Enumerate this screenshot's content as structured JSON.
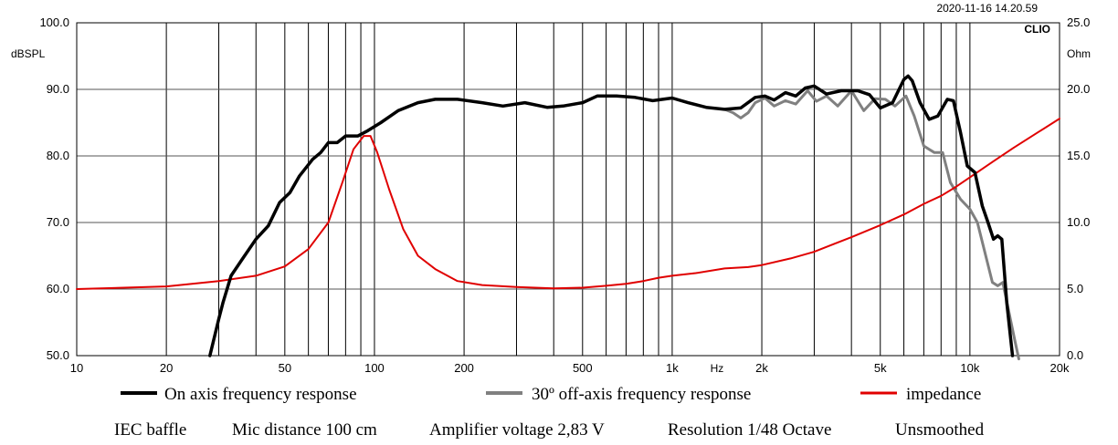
{
  "chart_data": {
    "type": "line",
    "timestamp": "2020-11-16 14.20.59",
    "brand": "CLIO",
    "left_axis": {
      "unit": "dBSPL",
      "range": [
        50,
        100
      ],
      "ticks": [
        50,
        60,
        70,
        80,
        90,
        100
      ],
      "tick_labels": [
        "50.0",
        "60.0",
        "70.0",
        "80.0",
        "90.0",
        "100.0"
      ]
    },
    "right_axis": {
      "unit": "Ohm",
      "range": [
        0,
        25
      ],
      "ticks": [
        0,
        5,
        10,
        15,
        20,
        25
      ],
      "tick_labels": [
        "0.0",
        "5.0",
        "10.0",
        "15.0",
        "20.0",
        "25.0"
      ]
    },
    "x_axis": {
      "scale": "log",
      "unit": "Hz",
      "range": [
        10,
        20000
      ],
      "labeled_ticks": [
        {
          "value": 10,
          "label": "10"
        },
        {
          "value": 20,
          "label": "20"
        },
        {
          "value": 50,
          "label": "50"
        },
        {
          "value": 100,
          "label": "100"
        },
        {
          "value": 200,
          "label": "200"
        },
        {
          "value": 500,
          "label": "500"
        },
        {
          "value": 1000,
          "label": "1k"
        },
        {
          "value": 2000,
          "label": "2k"
        },
        {
          "value": 5000,
          "label": "5k"
        },
        {
          "value": 10000,
          "label": "10k"
        },
        {
          "value": 20000,
          "label": "20k"
        }
      ],
      "gridlines": [
        20,
        30,
        40,
        50,
        60,
        70,
        80,
        90,
        100,
        200,
        300,
        400,
        500,
        600,
        700,
        800,
        900,
        1000,
        2000,
        3000,
        4000,
        5000,
        6000,
        7000,
        8000,
        9000,
        10000
      ],
      "unit_label_at": 1414
    },
    "series": [
      {
        "name": "On axis frequency response",
        "axis": "left",
        "color": "#000000",
        "points": [
          [
            28,
            50
          ],
          [
            30,
            55.5
          ],
          [
            31,
            58
          ],
          [
            33,
            62
          ],
          [
            36,
            64.5
          ],
          [
            40,
            67.5
          ],
          [
            44,
            69.5
          ],
          [
            48,
            73
          ],
          [
            52,
            74.5
          ],
          [
            56,
            77
          ],
          [
            62,
            79.5
          ],
          [
            66,
            80.5
          ],
          [
            70,
            82
          ],
          [
            75,
            82
          ],
          [
            80,
            83
          ],
          [
            88,
            83
          ],
          [
            95,
            83.8
          ],
          [
            105,
            85
          ],
          [
            120,
            86.8
          ],
          [
            140,
            88
          ],
          [
            160,
            88.5
          ],
          [
            190,
            88.5
          ],
          [
            230,
            88
          ],
          [
            270,
            87.5
          ],
          [
            320,
            88
          ],
          [
            380,
            87.3
          ],
          [
            430,
            87.5
          ],
          [
            500,
            88
          ],
          [
            560,
            89
          ],
          [
            650,
            89
          ],
          [
            750,
            88.8
          ],
          [
            860,
            88.3
          ],
          [
            1000,
            88.7
          ],
          [
            1130,
            88
          ],
          [
            1300,
            87.3
          ],
          [
            1500,
            87
          ],
          [
            1700,
            87.2
          ],
          [
            1900,
            88.8
          ],
          [
            2050,
            89
          ],
          [
            2200,
            88.4
          ],
          [
            2400,
            89.5
          ],
          [
            2600,
            89
          ],
          [
            2800,
            90.2
          ],
          [
            3000,
            90.5
          ],
          [
            3300,
            89.3
          ],
          [
            3700,
            89.8
          ],
          [
            4200,
            89.8
          ],
          [
            4600,
            89.2
          ],
          [
            5000,
            87.2
          ],
          [
            5500,
            88
          ],
          [
            6000,
            91.5
          ],
          [
            6200,
            92
          ],
          [
            6400,
            91.3
          ],
          [
            6800,
            88
          ],
          [
            7300,
            85.5
          ],
          [
            7800,
            86
          ],
          [
            8400,
            88.5
          ],
          [
            8800,
            88.3
          ],
          [
            9300,
            83.5
          ],
          [
            9800,
            78.5
          ],
          [
            10400,
            77.5
          ],
          [
            11000,
            72.5
          ],
          [
            11500,
            70
          ],
          [
            12000,
            67.5
          ],
          [
            12400,
            68
          ],
          [
            12800,
            67.5
          ],
          [
            13300,
            58
          ],
          [
            13900,
            50
          ]
        ]
      },
      {
        "name": "30º off-axis frequency response",
        "axis": "left",
        "color": "#808080",
        "points": [
          [
            1500,
            87
          ],
          [
            1600,
            86.5
          ],
          [
            1700,
            85.7
          ],
          [
            1800,
            86.5
          ],
          [
            1900,
            88
          ],
          [
            2050,
            88.7
          ],
          [
            2200,
            87.5
          ],
          [
            2400,
            88.3
          ],
          [
            2600,
            87.8
          ],
          [
            2850,
            89.8
          ],
          [
            3050,
            88.2
          ],
          [
            3300,
            89
          ],
          [
            3600,
            87.5
          ],
          [
            4000,
            89.8
          ],
          [
            4400,
            86.8
          ],
          [
            4800,
            88.6
          ],
          [
            5200,
            88.5
          ],
          [
            5600,
            87.5
          ],
          [
            6100,
            89
          ],
          [
            6500,
            86
          ],
          [
            7000,
            81.5
          ],
          [
            7600,
            80.5
          ],
          [
            8100,
            80.5
          ],
          [
            8600,
            76
          ],
          [
            9300,
            73.5
          ],
          [
            10000,
            72
          ],
          [
            10600,
            70
          ],
          [
            11300,
            65
          ],
          [
            11900,
            61
          ],
          [
            12400,
            60.5
          ],
          [
            12900,
            61
          ],
          [
            13600,
            56
          ],
          [
            14200,
            52
          ],
          [
            14600,
            49.5
          ]
        ]
      },
      {
        "name": "impedance",
        "axis": "right",
        "color": "#e00000",
        "points": [
          [
            10,
            5
          ],
          [
            20,
            5.2
          ],
          [
            30,
            5.6
          ],
          [
            40,
            6
          ],
          [
            50,
            6.7
          ],
          [
            60,
            8
          ],
          [
            70,
            10
          ],
          [
            78,
            13
          ],
          [
            85,
            15.5
          ],
          [
            92,
            16.5
          ],
          [
            97,
            16.5
          ],
          [
            102,
            15.3
          ],
          [
            112,
            12.5
          ],
          [
            125,
            9.5
          ],
          [
            140,
            7.5
          ],
          [
            160,
            6.5
          ],
          [
            190,
            5.6
          ],
          [
            230,
            5.3
          ],
          [
            300,
            5.15
          ],
          [
            400,
            5.05
          ],
          [
            500,
            5.1
          ],
          [
            600,
            5.25
          ],
          [
            700,
            5.4
          ],
          [
            800,
            5.6
          ],
          [
            900,
            5.85
          ],
          [
            1000,
            6
          ],
          [
            1200,
            6.2
          ],
          [
            1500,
            6.55
          ],
          [
            1800,
            6.65
          ],
          [
            2000,
            6.8
          ],
          [
            2500,
            7.3
          ],
          [
            3000,
            7.8
          ],
          [
            3500,
            8.4
          ],
          [
            4000,
            8.9
          ],
          [
            5000,
            9.8
          ],
          [
            6000,
            10.6
          ],
          [
            7000,
            11.4
          ],
          [
            8000,
            12
          ],
          [
            9000,
            12.7
          ],
          [
            10000,
            13.4
          ],
          [
            12000,
            14.6
          ],
          [
            14000,
            15.6
          ],
          [
            17000,
            16.8
          ],
          [
            20000,
            17.8
          ]
        ]
      }
    ],
    "legend": {
      "items": [
        {
          "label": "On axis frequency response",
          "color": "#000000"
        },
        {
          "label": "30º off-axis frequency response",
          "color": "#808080"
        },
        {
          "label": "impedance",
          "color": "#e00000"
        }
      ]
    },
    "footer": {
      "items": [
        "IEC baffle",
        "Mic distance 100 cm",
        "Amplifier voltage 2,83 V",
        "Resolution 1/48 Octave",
        "Unsmoothed"
      ]
    }
  }
}
